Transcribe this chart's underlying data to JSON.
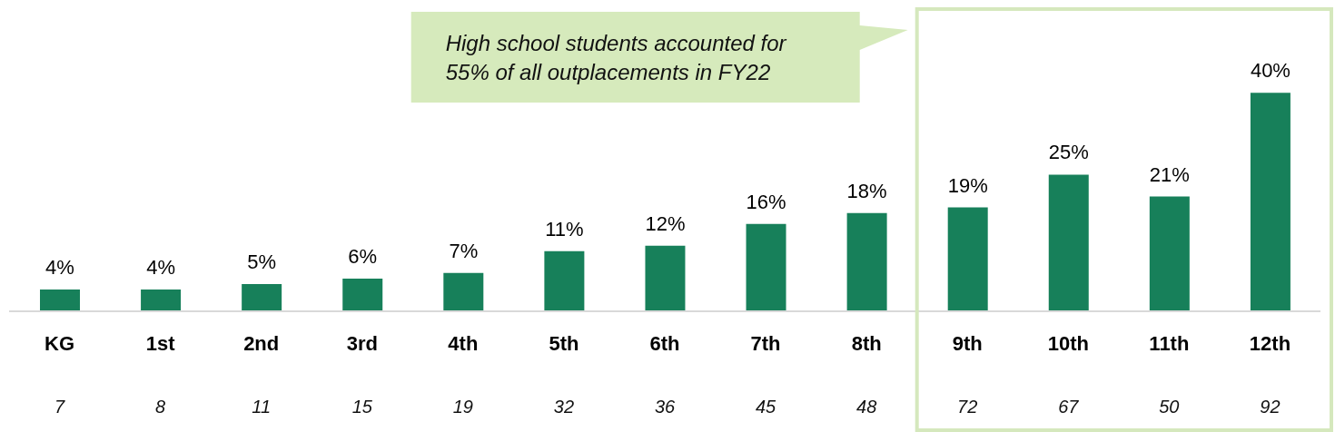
{
  "chart_data": {
    "type": "bar",
    "categories": [
      "KG",
      "1st",
      "2nd",
      "3rd",
      "4th",
      "5th",
      "6th",
      "7th",
      "8th",
      "9th",
      "10th",
      "11th",
      "12th"
    ],
    "values": [
      4,
      4,
      5,
      6,
      7,
      11,
      12,
      16,
      18,
      19,
      25,
      21,
      40
    ],
    "value_labels": [
      "4%",
      "4%",
      "5%",
      "6%",
      "7%",
      "11%",
      "12%",
      "16%",
      "18%",
      "19%",
      "25%",
      "21%",
      "40%"
    ],
    "color": "#17805a",
    "annotations": [
      "High school students accounted for 55% of all outplacements in FY22",
      "7",
      "8",
      "11",
      "15",
      "19",
      "32",
      "36",
      "45",
      "48",
      "72",
      "67",
      "50",
      "92"
    ]
  }
}
